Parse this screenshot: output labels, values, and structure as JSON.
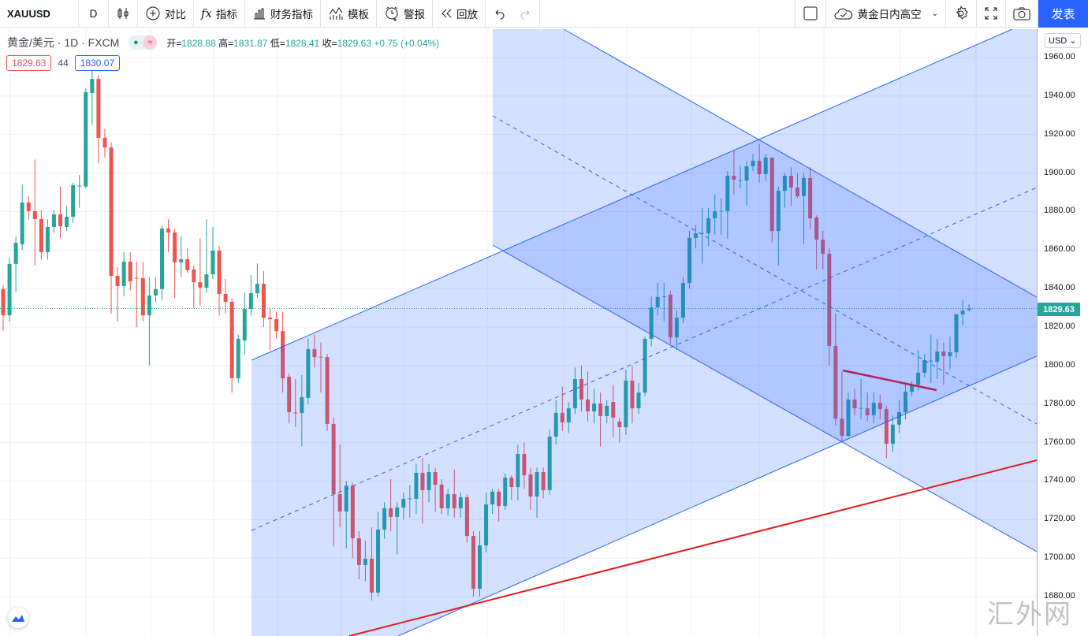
{
  "toolbar": {
    "symbol": "XAUUSD",
    "interval": "D",
    "compare": "对比",
    "indicators": "指标",
    "financials": "财务指标",
    "templates": "模板",
    "alert": "警报",
    "replay": "回放",
    "layout_name": "黄金日内高空",
    "publish": "发表"
  },
  "legend": {
    "title": "黄金/美元 · 1D · FXCM",
    "open_label": "开=",
    "open": "1828.88",
    "high_label": "高=",
    "high": "1831.87",
    "low_label": "低=",
    "low": "1828.41",
    "close_label": "收=",
    "close": "1829.63",
    "change": "+0.75 (+0.04%)",
    "bid": "1829.63",
    "spread": "44",
    "ask": "1830.07"
  },
  "axis": {
    "currency": "USD",
    "current_price": "1829.63",
    "ticks": [
      "1960.00",
      "1940.00",
      "1920.00",
      "1900.00",
      "1880.00",
      "1860.00",
      "1840.00",
      "1820.00",
      "1800.00",
      "1780.00",
      "1760.00",
      "1740.00",
      "1720.00",
      "1700.00",
      "1680.00"
    ]
  },
  "watermark": "汇外网",
  "colors": {
    "up": "#26a69a",
    "down": "#ef5350",
    "accent": "#2962ff",
    "channel": "#2962ff",
    "trendline": "#e01d1d",
    "segment": "#b0245c"
  },
  "chart_data": {
    "type": "candlestick",
    "title": "黄金/美元 · 1D · FXCM",
    "ylabel": "USD",
    "ylim": [
      1660,
      1975
    ],
    "last_price": 1829.63,
    "grid": true,
    "ohlc": [
      [
        1839.7,
        1842,
        1818,
        1826.1
      ],
      [
        1826.1,
        1856,
        1823,
        1852.8
      ],
      [
        1852.8,
        1867,
        1838,
        1863.8
      ],
      [
        1863,
        1894,
        1860,
        1884.7
      ],
      [
        1884.7,
        1888,
        1876,
        1880.2
      ],
      [
        1880.2,
        1907,
        1852,
        1876.1
      ],
      [
        1876.1,
        1881,
        1855,
        1858.9
      ],
      [
        1858.9,
        1876,
        1855,
        1872.0
      ],
      [
        1872,
        1881,
        1869,
        1878.5
      ],
      [
        1878.5,
        1893,
        1866,
        1872.4
      ],
      [
        1872,
        1883,
        1870,
        1877.3
      ],
      [
        1877.3,
        1895,
        1874,
        1893.7
      ],
      [
        1893.3,
        1899,
        1882,
        1893.5
      ],
      [
        1893,
        1944,
        1892,
        1942
      ],
      [
        1941.6,
        1953,
        1925,
        1948.9
      ],
      [
        1948.9,
        1951,
        1905,
        1918.3
      ],
      [
        1918.3,
        1923,
        1908,
        1913.3
      ],
      [
        1913.3,
        1916,
        1827,
        1846.6
      ],
      [
        1846.6,
        1851,
        1823,
        1841.3
      ],
      [
        1841.3,
        1859,
        1836,
        1854
      ],
      [
        1854,
        1859,
        1839,
        1843.7
      ],
      [
        1845.6,
        1854,
        1820,
        1845.4
      ],
      [
        1845.4,
        1854,
        1823,
        1826.1
      ],
      [
        1826.1,
        1846,
        1800,
        1836.4
      ],
      [
        1836.4,
        1846,
        1833,
        1839.7
      ],
      [
        1839.7,
        1873,
        1834,
        1871.2
      ],
      [
        1871.2,
        1876,
        1859,
        1869.1
      ],
      [
        1869.1,
        1871,
        1835,
        1853.6
      ],
      [
        1853.6,
        1867,
        1846,
        1855.2
      ],
      [
        1855.2,
        1861,
        1848,
        1849.5
      ],
      [
        1849.9,
        1852,
        1830,
        1843.3
      ],
      [
        1843.3,
        1866,
        1831,
        1840.5
      ],
      [
        1840.5,
        1876,
        1838,
        1847.4
      ],
      [
        1847.4,
        1872,
        1845,
        1859.7
      ],
      [
        1859.7,
        1862,
        1826,
        1837.2
      ],
      [
        1837.2,
        1845,
        1827,
        1833.1
      ],
      [
        1833.1,
        1835,
        1786,
        1793.4
      ],
      [
        1793.4,
        1816,
        1791,
        1813.9
      ],
      [
        1813,
        1838,
        1806,
        1829.4
      ],
      [
        1829.4,
        1847,
        1826,
        1837.6
      ],
      [
        1837.6,
        1853,
        1835,
        1842.5
      ],
      [
        1842.5,
        1849,
        1820,
        1824.9
      ],
      [
        1824.9,
        1830,
        1808,
        1824.1
      ],
      [
        1824.1,
        1828,
        1814,
        1817.9
      ],
      [
        1817.9,
        1828,
        1786,
        1793.4
      ],
      [
        1794.2,
        1796,
        1770,
        1775.8
      ],
      [
        1775.6,
        1793,
        1768,
        1775.4
      ],
      [
        1775.4,
        1795,
        1758,
        1783.6
      ],
      [
        1783.2,
        1814,
        1780,
        1808.5
      ],
      [
        1808.5,
        1816,
        1799,
        1804.4
      ],
      [
        1804.6,
        1812,
        1786,
        1804.4
      ],
      [
        1804.4,
        1806,
        1766,
        1769.7
      ],
      [
        1769.7,
        1773,
        1706,
        1733.2
      ],
      [
        1733.2,
        1759,
        1716,
        1724.2
      ],
      [
        1724.2,
        1740,
        1705,
        1737.7
      ],
      [
        1737.7,
        1739,
        1700,
        1710.3
      ],
      [
        1710.3,
        1714,
        1689,
        1696.4
      ],
      [
        1696.4,
        1709,
        1688,
        1699.7
      ],
      [
        1699.7,
        1716,
        1678,
        1682.1
      ],
      [
        1682.1,
        1724,
        1680,
        1714.8
      ],
      [
        1714.8,
        1729,
        1710,
        1725.9
      ],
      [
        1725.9,
        1741,
        1714,
        1721.4
      ],
      [
        1721.4,
        1729,
        1702,
        1726.3
      ],
      [
        1726.3,
        1734,
        1720,
        1730.8
      ],
      [
        1730.8,
        1738,
        1721,
        1731.0
      ],
      [
        1730.8,
        1749,
        1723,
        1744.3
      ],
      [
        1744.3,
        1752,
        1718,
        1735.3
      ],
      [
        1735.3,
        1749,
        1729,
        1744.7
      ],
      [
        1744.7,
        1747,
        1724,
        1738.1
      ],
      [
        1738.1,
        1741,
        1723,
        1725.9
      ],
      [
        1725.9,
        1736,
        1722,
        1733.2
      ],
      [
        1733.2,
        1746,
        1721,
        1725.9
      ],
      [
        1725.9,
        1734,
        1721,
        1731.6
      ],
      [
        1731.6,
        1733,
        1708,
        1711.5
      ],
      [
        1711.5,
        1714,
        1680,
        1684.1
      ],
      [
        1684.1,
        1714,
        1680,
        1706.6
      ],
      [
        1706.6,
        1734,
        1703,
        1727.9
      ],
      [
        1727.9,
        1736,
        1723,
        1734.5
      ],
      [
        1734.5,
        1736,
        1719,
        1727.1
      ],
      [
        1727.1,
        1744,
        1725,
        1741.8
      ],
      [
        1741.8,
        1743,
        1730,
        1736.9
      ],
      [
        1736.9,
        1759,
        1730,
        1754.1
      ],
      [
        1754.1,
        1760,
        1736,
        1743.1
      ],
      [
        1743.5,
        1747,
        1725,
        1732
      ],
      [
        1732,
        1747,
        1721,
        1744.7
      ],
      [
        1744.7,
        1747,
        1731,
        1735.3
      ],
      [
        1735.3,
        1767,
        1733,
        1763.1
      ],
      [
        1763.1,
        1782,
        1759,
        1775.4
      ],
      [
        1775.4,
        1789,
        1766,
        1770.5
      ],
      [
        1770.5,
        1781,
        1765,
        1777.8
      ],
      [
        1777.8,
        1799,
        1775,
        1793
      ],
      [
        1793,
        1800,
        1776,
        1782.4
      ],
      [
        1782.4,
        1797,
        1771,
        1776.2
      ],
      [
        1776.2,
        1788,
        1770,
        1780.3
      ],
      [
        1780.3,
        1786,
        1758,
        1773.8
      ],
      [
        1773.8,
        1782,
        1770,
        1779.1
      ],
      [
        1781.1,
        1790,
        1763,
        1773
      ],
      [
        1770.9,
        1773,
        1760,
        1768
      ],
      [
        1768,
        1798,
        1764,
        1792.2
      ],
      [
        1792.2,
        1800,
        1770,
        1777.8
      ],
      [
        1777.8,
        1791,
        1775,
        1786
      ],
      [
        1786,
        1815,
        1784,
        1813.9
      ],
      [
        1813.9,
        1836,
        1810,
        1830.2
      ],
      [
        1830.2,
        1843,
        1826,
        1835.6
      ],
      [
        1835.8,
        1843,
        1823,
        1836
      ],
      [
        1836.8,
        1839,
        1811,
        1814.7
      ],
      [
        1814.7,
        1829,
        1808,
        1824.9
      ],
      [
        1824.9,
        1846,
        1822,
        1842.9
      ],
      [
        1842.9,
        1870,
        1840,
        1866.3
      ],
      [
        1866.3,
        1873,
        1861,
        1868.7
      ],
      [
        1868.7,
        1882,
        1853,
        1868.9
      ],
      [
        1868.7,
        1882,
        1862,
        1876.5
      ],
      [
        1876.5,
        1889,
        1868,
        1880.2
      ],
      [
        1880.2,
        1887,
        1868,
        1880.4
      ],
      [
        1880.2,
        1901,
        1866,
        1898.6
      ],
      [
        1898.6,
        1912,
        1889,
        1896.6
      ],
      [
        1896.1,
        1904,
        1892,
        1896.3
      ],
      [
        1896.1,
        1906,
        1883,
        1903.5
      ],
      [
        1903.5,
        1910,
        1901,
        1906.4
      ],
      [
        1906.4,
        1915,
        1895,
        1899.4
      ],
      [
        1899.4,
        1910,
        1896,
        1908
      ],
      [
        1908,
        1908,
        1864,
        1869.9
      ],
      [
        1869.9,
        1893,
        1852,
        1890.8
      ],
      [
        1890.8,
        1900,
        1882,
        1898.6
      ],
      [
        1898.6,
        1903,
        1883,
        1892.5
      ],
      [
        1892.5,
        1900,
        1887,
        1888
      ],
      [
        1888,
        1900,
        1863,
        1897.4
      ],
      [
        1897.4,
        1903,
        1871,
        1876.5
      ],
      [
        1876.9,
        1878,
        1850,
        1865.4
      ],
      [
        1865.4,
        1870,
        1850,
        1858.1
      ],
      [
        1858.1,
        1861,
        1800,
        1810.2
      ],
      [
        1810.2,
        1827,
        1769,
        1772.5
      ],
      [
        1772.5,
        1797,
        1760,
        1763.5
      ],
      [
        1763.5,
        1786,
        1763,
        1782.4
      ],
      [
        1782.4,
        1788,
        1774,
        1777.8
      ],
      [
        1777.8,
        1793,
        1772,
        1778
      ],
      [
        1777.8,
        1786,
        1771,
        1774.2
      ],
      [
        1774.2,
        1786,
        1770,
        1780.7
      ],
      [
        1780.7,
        1785,
        1772,
        1777.4
      ],
      [
        1777.4,
        1779,
        1752,
        1759.4
      ],
      [
        1759.4,
        1774,
        1755,
        1769.3
      ],
      [
        1769.3,
        1782,
        1765,
        1775.8
      ],
      [
        1775.8,
        1791,
        1772,
        1786.4
      ],
      [
        1786.4,
        1792,
        1784,
        1790.1
      ],
      [
        1790.1,
        1808,
        1787,
        1796.3
      ],
      [
        1796.3,
        1806,
        1794,
        1802.8
      ],
      [
        1802.4,
        1816,
        1791,
        1802.6
      ],
      [
        1802,
        1814,
        1793,
        1807.3
      ],
      [
        1807.3,
        1812,
        1790,
        1804.9
      ],
      [
        1804.9,
        1815,
        1798,
        1806.9
      ],
      [
        1806.9,
        1827,
        1804,
        1826.6
      ],
      [
        1826.6,
        1834,
        1821,
        1828.6
      ],
      [
        1828.88,
        1831.87,
        1828.41,
        1829.63
      ]
    ]
  }
}
